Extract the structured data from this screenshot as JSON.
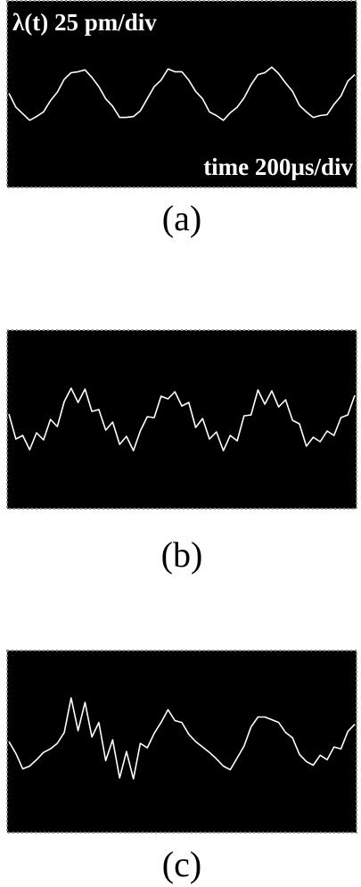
{
  "chart_data": [
    {
      "type": "line",
      "title": "(a)",
      "annotations": [
        "λ(t) 25 pm/div",
        "time 200µs/div"
      ],
      "color": "#ffffff",
      "xlim": [
        0,
        2000
      ],
      "ylim": [
        -100,
        100
      ],
      "x": [
        0,
        40,
        80,
        120,
        160,
        200,
        240,
        280,
        320,
        360,
        400,
        440,
        480,
        520,
        560,
        600,
        640,
        680,
        720,
        760,
        800,
        840,
        880,
        920,
        960,
        1000,
        1040,
        1080,
        1120,
        1160,
        1200,
        1240,
        1280,
        1320,
        1360,
        1400,
        1440,
        1480,
        1520,
        1560,
        1600,
        1640,
        1680,
        1720,
        1760,
        1800,
        1840,
        1880,
        1920,
        1960,
        2000
      ],
      "values": [
        1,
        -14,
        -21,
        -28,
        -24,
        -19,
        -7,
        2,
        16,
        23,
        24,
        26,
        18,
        8,
        -5,
        -13,
        -25,
        -25,
        -24,
        -18,
        -5,
        8,
        15,
        27,
        24,
        24,
        15,
        3,
        -5,
        -19,
        -23,
        -28,
        -20,
        -14,
        -4,
        10,
        21,
        23,
        29,
        22,
        12,
        3,
        -12,
        -19,
        -25,
        -23,
        -22,
        -11,
        -2,
        14,
        21
      ]
    },
    {
      "type": "line",
      "title": "(b)",
      "color": "#ffffff",
      "xlim": [
        0,
        2000
      ],
      "ylim": [
        -100,
        100
      ],
      "x": [
        0,
        40,
        80,
        120,
        160,
        200,
        240,
        280,
        320,
        360,
        400,
        440,
        480,
        520,
        560,
        600,
        640,
        680,
        720,
        760,
        800,
        840,
        880,
        920,
        960,
        1000,
        1040,
        1080,
        1120,
        1160,
        1200,
        1240,
        1280,
        1320,
        1360,
        1400,
        1440,
        1480,
        1520,
        1560,
        1600,
        1640,
        1680,
        1720,
        1760,
        1800,
        1840,
        1880,
        1920,
        1960,
        2000
      ],
      "values": [
        6,
        -22,
        -18,
        -34,
        -15,
        -23,
        0,
        -8,
        20,
        35,
        19,
        34,
        9,
        11,
        -12,
        -3,
        -28,
        -19,
        -35,
        -13,
        3,
        2,
        26,
        23,
        31,
        15,
        19,
        -9,
        1,
        -22,
        -14,
        -35,
        -18,
        -24,
        4,
        5,
        33,
        17,
        32,
        14,
        22,
        -1,
        -5,
        -30,
        -20,
        -25,
        -13,
        -18,
        2,
        5,
        27
      ]
    },
    {
      "type": "line",
      "title": "(c)",
      "color": "#ffffff",
      "xlim": [
        0,
        2000
      ],
      "ylim": [
        -100,
        100
      ],
      "x": [
        0,
        40,
        80,
        120,
        160,
        200,
        240,
        280,
        320,
        360,
        400,
        440,
        480,
        520,
        560,
        600,
        640,
        680,
        720,
        760,
        800,
        840,
        880,
        920,
        960,
        1000,
        1040,
        1080,
        1120,
        1160,
        1200,
        1240,
        1280,
        1320,
        1360,
        1400,
        1440,
        1480,
        1520,
        1560,
        1600,
        1640,
        1680,
        1720,
        1760,
        1800,
        1840,
        1880,
        1920,
        1960,
        2000
      ],
      "values": [
        0,
        -13,
        -30,
        -27,
        -20,
        -12,
        -8,
        -2,
        10,
        48,
        12,
        43,
        5,
        21,
        -21,
        2,
        -40,
        -11,
        -41,
        -2,
        -7,
        9,
        21,
        35,
        23,
        21,
        8,
        0,
        -6,
        -12,
        -19,
        -27,
        -31,
        -18,
        -5,
        16,
        27,
        27,
        24,
        21,
        10,
        4,
        -14,
        -22,
        -26,
        -15,
        -20,
        -6,
        -8,
        11,
        19
      ]
    }
  ]
}
